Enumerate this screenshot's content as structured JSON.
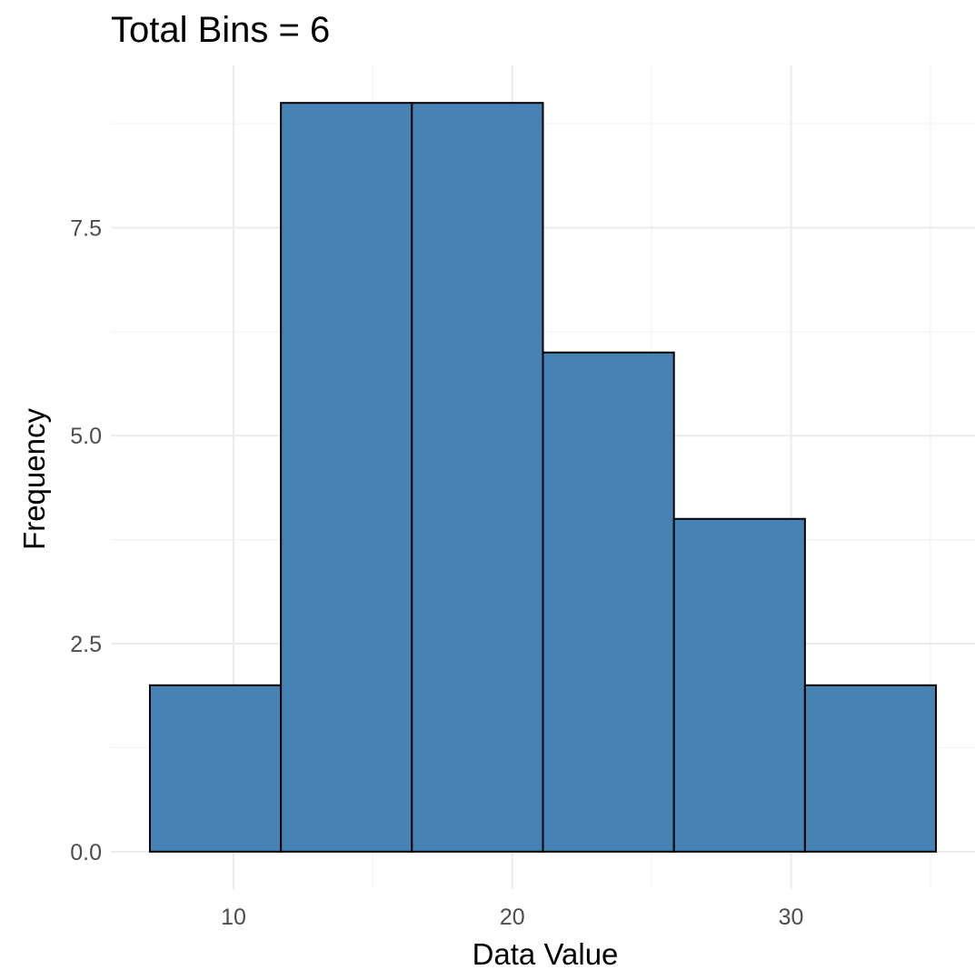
{
  "chart_data": {
    "type": "bar",
    "subtype": "histogram",
    "title": "Total Bins = 6",
    "xlabel": "Data Value",
    "ylabel": "Frequency",
    "bins": [
      {
        "x0": 7.0,
        "x1": 11.7,
        "count": 2
      },
      {
        "x0": 11.7,
        "x1": 16.4,
        "count": 9
      },
      {
        "x0": 16.4,
        "x1": 21.1,
        "count": 9
      },
      {
        "x0": 21.1,
        "x1": 25.8,
        "count": 6
      },
      {
        "x0": 25.8,
        "x1": 30.5,
        "count": 4
      },
      {
        "x0": 30.5,
        "x1": 35.2,
        "count": 2
      }
    ],
    "xlim": [
      5.6,
      36.6
    ],
    "ylim": [
      -0.45,
      9.45
    ],
    "x_ticks": [
      10,
      20,
      30
    ],
    "x_tick_labels": [
      "10",
      "20",
      "30"
    ],
    "y_ticks": [
      0,
      2.5,
      5,
      7.5
    ],
    "y_tick_labels": [
      "0.0",
      "2.5",
      "5.0",
      "7.5"
    ],
    "bar_fill": "#4682b4",
    "bar_outline": "#000000",
    "grid": true,
    "legend": "none"
  }
}
